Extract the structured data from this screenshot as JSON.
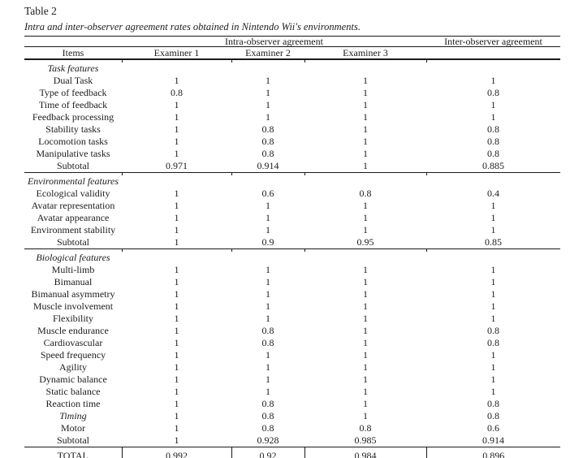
{
  "page": {
    "table_label": "Table 2",
    "caption": "Intra and inter-observer agreement rates obtained in Nintendo Wii's environments."
  },
  "table": {
    "spanner_headers": {
      "intra": "Intra-observer agreement",
      "inter": "Inter-observer agreement"
    },
    "column_headers": [
      "Items",
      "Examiner 1",
      "Examiner 2",
      "Examiner 3",
      ""
    ],
    "sections": [
      {
        "label": "Task features",
        "rows": [
          {
            "item": "Dual Task",
            "values": [
              "1",
              "1",
              "1",
              "1"
            ]
          },
          {
            "item": "Type of feedback",
            "values": [
              "0.8",
              "1",
              "1",
              "0.8"
            ]
          },
          {
            "item": "Time of feedback",
            "values": [
              "1",
              "1",
              "1",
              "1"
            ]
          },
          {
            "item": "Feedback processing",
            "values": [
              "1",
              "1",
              "1",
              "1"
            ]
          },
          {
            "item": "Stability tasks",
            "values": [
              "1",
              "0.8",
              "1",
              "0.8"
            ]
          },
          {
            "item": "Locomotion tasks",
            "values": [
              "1",
              "0.8",
              "1",
              "0.8"
            ]
          },
          {
            "item": "Manipulative tasks",
            "values": [
              "1",
              "0.8",
              "1",
              "0.8"
            ]
          },
          {
            "item": "Subtotal",
            "values": [
              "0.971",
              "0.914",
              "1",
              "0.885"
            ]
          }
        ]
      },
      {
        "label": "Environmental features",
        "rows": [
          {
            "item": "Ecological validity",
            "values": [
              "1",
              "0.6",
              "0.8",
              "0.4"
            ]
          },
          {
            "item": "Avatar representation",
            "values": [
              "1",
              "1",
              "1",
              "1"
            ]
          },
          {
            "item": "Avatar appearance",
            "values": [
              "1",
              "1",
              "1",
              "1"
            ]
          },
          {
            "item": "Environment stability",
            "values": [
              "1",
              "1",
              "1",
              "1"
            ]
          },
          {
            "item": "Subtotal",
            "values": [
              "1",
              "0.9",
              "0.95",
              "0.85"
            ]
          }
        ]
      },
      {
        "label": "Biological features",
        "rows": [
          {
            "item": "Multi-limb",
            "values": [
              "1",
              "1",
              "1",
              "1"
            ]
          },
          {
            "item": "Bimanual",
            "values": [
              "1",
              "1",
              "1",
              "1"
            ]
          },
          {
            "item": "Bimanual asymmetry",
            "values": [
              "1",
              "1",
              "1",
              "1"
            ]
          },
          {
            "item": "Muscle involvement",
            "values": [
              "1",
              "1",
              "1",
              "1"
            ]
          },
          {
            "item": "Flexibility",
            "values": [
              "1",
              "1",
              "1",
              "1"
            ]
          },
          {
            "item": "Muscle endurance",
            "values": [
              "1",
              "0.8",
              "1",
              "0.8"
            ]
          },
          {
            "item": "Cardiovascular",
            "values": [
              "1",
              "0.8",
              "1",
              "0.8"
            ]
          },
          {
            "item": "Speed frequency",
            "values": [
              "1",
              "1",
              "1",
              "1"
            ]
          },
          {
            "item": "Agility",
            "values": [
              "1",
              "1",
              "1",
              "1"
            ]
          },
          {
            "item": "Dynamic balance",
            "values": [
              "1",
              "1",
              "1",
              "1"
            ]
          },
          {
            "item": "Static balance",
            "values": [
              "1",
              "1",
              "1",
              "1"
            ]
          },
          {
            "item": "Reaction time",
            "values": [
              "1",
              "0.8",
              "1",
              "0.8"
            ]
          },
          {
            "item": "Timing",
            "italic": true,
            "values": [
              "1",
              "0.8",
              "1",
              "0.8"
            ]
          },
          {
            "item": "Motor",
            "values": [
              "1",
              "0.8",
              "0.8",
              "0.6"
            ]
          },
          {
            "item": "Subtotal",
            "values": [
              "1",
              "0.928",
              "0.985",
              "0.914"
            ]
          }
        ]
      }
    ],
    "total_row": {
      "item": "TOTAL",
      "values": [
        "0.992",
        "0.92",
        "0.984",
        "0.896"
      ]
    }
  }
}
